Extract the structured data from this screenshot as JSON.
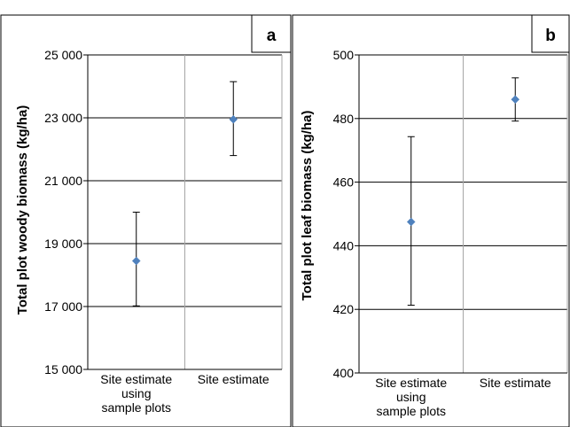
{
  "chart_data": [
    {
      "type": "scatter",
      "panel_label": "a",
      "ylabel": "Total plot woody biomass (kg/ha)",
      "categories": [
        "Site estimate\nusing\nsample plots",
        "Site estimate"
      ],
      "y_ticks": [
        "15 000",
        "17 000",
        "19 000",
        "21 000",
        "23 000",
        "25 000"
      ],
      "ylim": [
        15000,
        25000
      ],
      "points": [
        {
          "category": "Site estimate\nusing\nsample plots",
          "y": 18450,
          "err_low": 17020,
          "err_high": 20000
        },
        {
          "category": "Site estimate",
          "y": 22950,
          "err_low": 21800,
          "err_high": 24150
        }
      ],
      "grid": true,
      "marker_color": "#4f81bd"
    },
    {
      "type": "scatter",
      "panel_label": "b",
      "ylabel": "Total plot leaf biomass (kg/ha)",
      "categories": [
        "Site estimate\nusing\nsample plots",
        "Site estimate"
      ],
      "y_ticks": [
        "400",
        "420",
        "440",
        "460",
        "480",
        "500"
      ],
      "ylim": [
        400,
        500
      ],
      "points": [
        {
          "category": "Site estimate\nusing\nsample plots",
          "y": 447.5,
          "err_low": 421.3,
          "err_high": 474.3
        },
        {
          "category": "Site estimate",
          "y": 486,
          "err_low": 479.2,
          "err_high": 492.8
        }
      ],
      "grid": true,
      "marker_color": "#4f81bd"
    }
  ]
}
